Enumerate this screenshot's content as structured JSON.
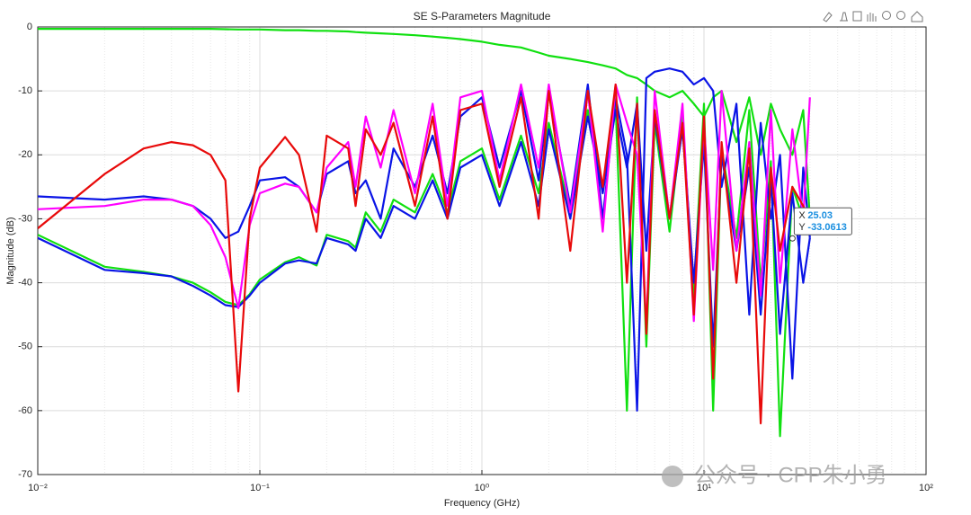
{
  "chart_data": {
    "type": "line",
    "title": "SE S-Parameters Magnitude",
    "x_label": "Frequency (GHz)",
    "y_label": "Magnitude (dB)",
    "x_scale": "log",
    "grid": true,
    "minor_grid": true,
    "xlim": [
      0.01,
      100
    ],
    "ylim": [
      -70,
      0
    ],
    "xticks": [
      {
        "value": 0.01,
        "label": "10⁻²"
      },
      {
        "value": 0.1,
        "label": "10⁻¹"
      },
      {
        "value": 1,
        "label": "10⁰"
      },
      {
        "value": 10,
        "label": "10¹"
      },
      {
        "value": 100,
        "label": "10²"
      }
    ],
    "yticks": [
      0,
      -10,
      -20,
      -30,
      -40,
      -50,
      -60,
      -70
    ],
    "x": [
      0.01,
      0.02,
      0.03,
      0.04,
      0.05,
      0.06,
      0.07,
      0.08,
      0.09,
      0.1,
      0.13,
      0.15,
      0.18,
      0.2,
      0.25,
      0.27,
      0.3,
      0.35,
      0.4,
      0.5,
      0.6,
      0.7,
      0.8,
      1,
      1.2,
      1.5,
      1.8,
      2,
      2.5,
      3,
      3.5,
      4,
      4.5,
      5,
      5.5,
      6,
      7,
      8,
      9,
      10,
      11,
      12,
      14,
      16,
      18,
      20,
      22,
      25,
      28,
      30
    ],
    "series": [
      {
        "color": "#10e010",
        "values": [
          -0.3,
          -0.3,
          -0.3,
          -0.3,
          -0.3,
          -0.3,
          -0.35,
          -0.4,
          -0.4,
          -0.4,
          -0.5,
          -0.5,
          -0.6,
          -0.6,
          -0.7,
          -0.8,
          -0.9,
          -1,
          -1.1,
          -1.3,
          -1.5,
          -1.7,
          -1.9,
          -2.3,
          -2.8,
          -3.2,
          -4,
          -4.5,
          -5,
          -5.5,
          -6,
          -6.5,
          -7.5,
          -8,
          -9,
          -10,
          -11,
          -10,
          -12,
          -14,
          -11,
          -10,
          -18,
          -11,
          -20,
          -12,
          -16,
          -20,
          -13,
          -30
        ]
      },
      {
        "color": "#10e010",
        "values": [
          -32.5,
          -37.5,
          -38.3,
          -39,
          -40,
          -41.5,
          -43,
          -43.5,
          -41.8,
          -39.5,
          -36.8,
          -36,
          -37.3,
          -32.5,
          -33.5,
          -34.5,
          -29,
          -32,
          -27,
          -29,
          -23,
          -29,
          -21,
          -19,
          -27,
          -17,
          -26,
          -15,
          -29,
          -13,
          -25,
          -12,
          -60,
          -11,
          -50,
          -15,
          -32,
          -14,
          -42,
          -12,
          -60,
          -19,
          -33,
          -13,
          -40,
          -21,
          -64,
          -25,
          -30,
          -31
        ]
      },
      {
        "color": "#0a14e6",
        "values": [
          -33,
          -38,
          -38.5,
          -39,
          -40.5,
          -42,
          -43.5,
          -43.8,
          -42,
          -40,
          -37,
          -36.5,
          -37,
          -33,
          -34,
          -35,
          -30,
          -33,
          -28,
          -30,
          -24,
          -30,
          -22,
          -20,
          -28,
          -18,
          -28,
          -16,
          -30,
          -14,
          -26,
          -13,
          -22,
          -12,
          -35,
          -14,
          -30,
          -16,
          -40,
          -18,
          -50,
          -20,
          -35,
          -22,
          -45,
          -24,
          -48,
          -26,
          -40,
          -33
        ]
      },
      {
        "color": "#0a14e6",
        "values": [
          -26.5,
          -27,
          -26.5,
          -27,
          -28,
          -30,
          -33,
          -32,
          -28,
          -24,
          -23.5,
          -25,
          -29,
          -23,
          -21,
          -26,
          -24,
          -30,
          -19,
          -25,
          -17,
          -26,
          -14,
          -11,
          -22,
          -10,
          -24,
          -10,
          -28,
          -9,
          -30,
          -11,
          -20,
          -60,
          -8,
          -7,
          -6.5,
          -7,
          -9,
          -8,
          -10,
          -25,
          -12,
          -45,
          -15,
          -30,
          -20,
          -55,
          -22,
          -33
        ]
      },
      {
        "color": "#ff00ff",
        "values": [
          -28.5,
          -28,
          -27,
          -27,
          -28,
          -31,
          -36,
          -44,
          -31,
          -26,
          -24.5,
          -25,
          -29,
          -22,
          -18,
          -25,
          -14,
          -22,
          -13,
          -26,
          -12,
          -28,
          -11,
          -10,
          -24,
          -9,
          -22,
          -9,
          -29,
          -10,
          -32,
          -9,
          -15,
          -20,
          -47,
          -10,
          -30,
          -12,
          -46,
          -15,
          -38,
          -10,
          -35,
          -18,
          -42,
          -13,
          -40,
          -16,
          -30,
          -11
        ]
      },
      {
        "color": "#e80a0a",
        "values": [
          -31.5,
          -23,
          -19,
          -18,
          -18.5,
          -20,
          -24,
          -57,
          -30,
          -22,
          -17.2,
          -20,
          -32,
          -17,
          -19,
          -28,
          -16,
          -20,
          -15,
          -28,
          -14,
          -30,
          -13,
          -12,
          -25,
          -11,
          -30,
          -10,
          -35,
          -10,
          -25,
          -9,
          -40,
          -12,
          -48,
          -13,
          -30,
          -15,
          -45,
          -14,
          -55,
          -18,
          -40,
          -19,
          -62,
          -22,
          -35,
          -25,
          -28,
          -30
        ]
      }
    ],
    "datatip": {
      "x_label": "X",
      "x": 25.03,
      "y_label": "Y",
      "y": -33.0613
    },
    "watermark": "公众号 · CPP朱小勇"
  }
}
